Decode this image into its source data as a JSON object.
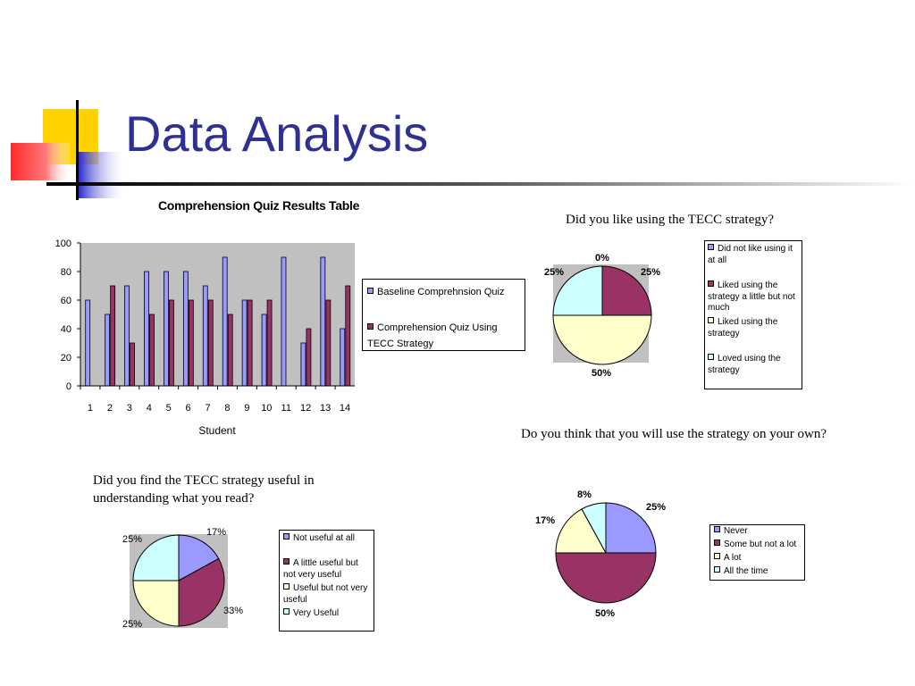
{
  "slide": {
    "title": "Data Analysis",
    "colors": {
      "title": "#2e3192",
      "deco_yellow": "#ffd200",
      "deco_blue": "#2c2ccf",
      "deco_red": "#ff2a2a"
    }
  },
  "colors": {
    "blue": "#9999ff",
    "maroon": "#993366",
    "cream": "#ffffcc",
    "light_cyan": "#ccffff",
    "plot_bg": "#c0c0c0"
  },
  "chart_data": [
    {
      "type": "bar",
      "title": "Comprehension Quiz Results Table",
      "xlabel": "Student",
      "ylabel": "",
      "categories": [
        "1",
        "2",
        "3",
        "4",
        "5",
        "6",
        "7",
        "8",
        "9",
        "10",
        "11",
        "12",
        "13",
        "14"
      ],
      "series": [
        {
          "name": "Baseline Comprehnsion Quiz",
          "color": "#9999ff",
          "values": [
            60,
            50,
            70,
            80,
            80,
            80,
            70,
            90,
            60,
            50,
            90,
            30,
            90,
            40
          ]
        },
        {
          "name": "Comprehension Quiz Using TECC Strategy",
          "color": "#993366",
          "values": [
            0,
            70,
            30,
            50,
            60,
            60,
            60,
            50,
            60,
            60,
            0,
            40,
            60,
            70
          ]
        }
      ],
      "ylim": [
        0,
        100
      ],
      "yticks": [
        0,
        20,
        40,
        60,
        80,
        100
      ],
      "grid": false,
      "legend": "right"
    },
    {
      "type": "pie",
      "title": "Did you like using the TECC strategy?",
      "labels": [
        "Did not like using it at all",
        "Liked using the strategy a little but not much",
        "Liked using the strategy",
        "Loved using the strategy"
      ],
      "values": [
        0,
        25,
        50,
        25
      ],
      "data_labels": [
        "0%",
        "25%",
        "50%",
        "25%"
      ],
      "colors": [
        "#9999ff",
        "#993366",
        "#ffffcc",
        "#ccffff"
      ],
      "legend": "right"
    },
    {
      "type": "pie",
      "title": "Did you find the TECC strategy useful in understanding what you read?",
      "labels": [
        "Not useful at all",
        "A little useful but not very useful",
        "Useful but not very useful",
        "Very Useful"
      ],
      "values": [
        17,
        33,
        25,
        25
      ],
      "data_labels": [
        "17%",
        "33%",
        "25%",
        "25%"
      ],
      "colors": [
        "#9999ff",
        "#993366",
        "#ffffcc",
        "#ccffff"
      ],
      "legend": "right"
    },
    {
      "type": "pie",
      "title": "Do you think that you will use the strategy on your own?",
      "labels": [
        "Never",
        "Some but not a lot",
        "A lot",
        "All the time"
      ],
      "values": [
        25,
        50,
        17,
        8
      ],
      "data_labels": [
        "25%",
        "50%",
        "17%",
        "8%"
      ],
      "colors": [
        "#9999ff",
        "#993366",
        "#ffffcc",
        "#ccffff"
      ],
      "legend": "right"
    }
  ]
}
